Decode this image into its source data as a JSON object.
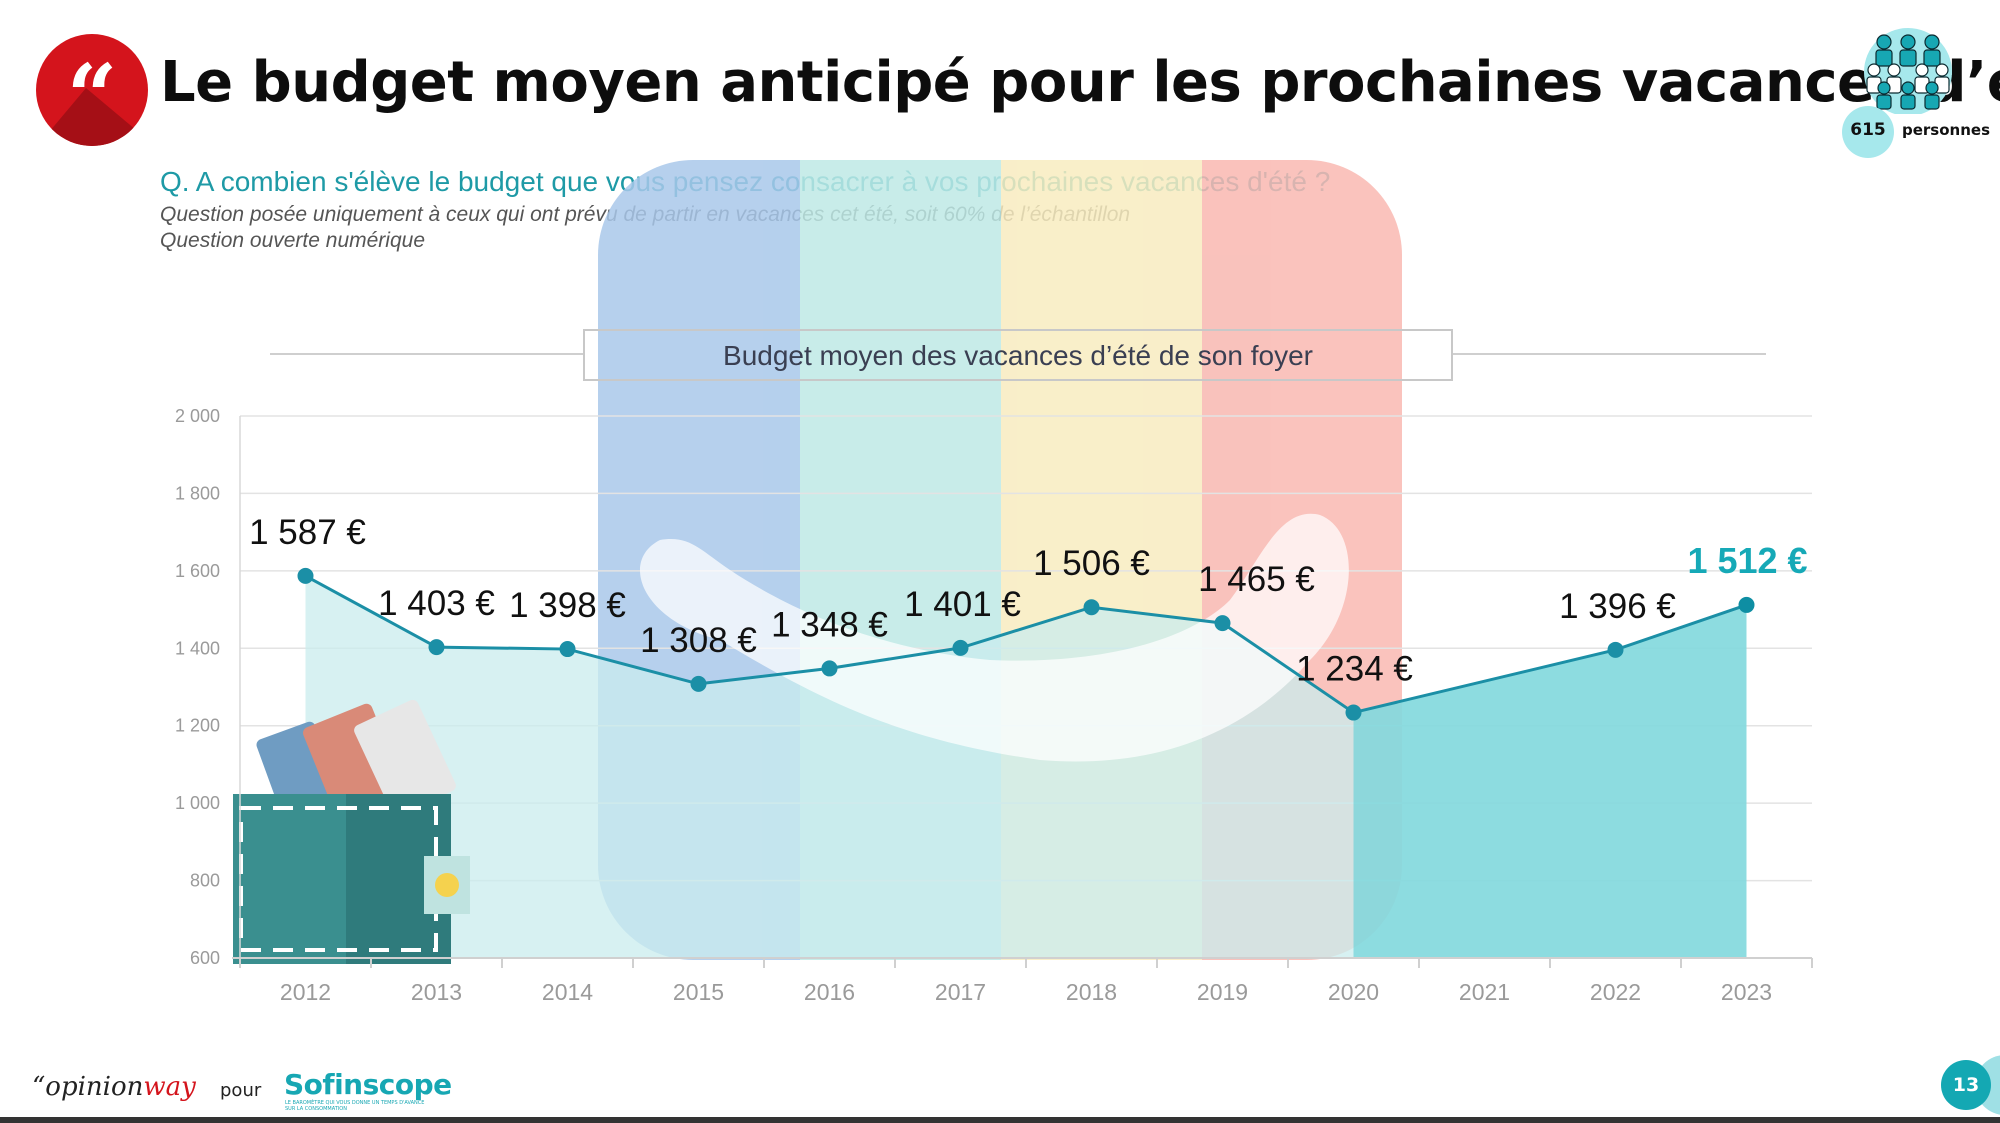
{
  "header": {
    "title": "Le budget moyen anticipé pour les prochaines vacances d’été",
    "quote_glyph": "“",
    "sample_count": "615",
    "sample_label": "personnes"
  },
  "question": {
    "text": "Q. A combien s'élève le budget que vous pensez consacrer à vos prochaines vacances d'été ?",
    "note1": "Question posée uniquement à ceux qui ont prévu de partir en vacances cet été, soit 60% de l’échantillon",
    "note2": "Question ouverte numérique"
  },
  "chart_data": {
    "type": "area",
    "title": "Budget moyen des vacances d’été de son foyer",
    "categories": [
      "2012",
      "2013",
      "2014",
      "2015",
      "2016",
      "2017",
      "2018",
      "2019",
      "2020",
      "2021",
      "2022",
      "2023"
    ],
    "points": [
      {
        "year": "2012",
        "value": 1587,
        "label": "1 587 €"
      },
      {
        "year": "2013",
        "value": 1403,
        "label": "1 403 €"
      },
      {
        "year": "2014",
        "value": 1398,
        "label": "1 398 €"
      },
      {
        "year": "2015",
        "value": 1308,
        "label": "1 308 €"
      },
      {
        "year": "2016",
        "value": 1348,
        "label": "1 348 €"
      },
      {
        "year": "2017",
        "value": 1401,
        "label": "1 401 €"
      },
      {
        "year": "2018",
        "value": 1506,
        "label": "1 506 €"
      },
      {
        "year": "2019",
        "value": 1465,
        "label": "1 465 €"
      },
      {
        "year": "2020",
        "value": 1234,
        "label": "1 234 €"
      },
      {
        "year": "2022",
        "value": 1396,
        "label": "1 396 €"
      },
      {
        "year": "2023",
        "value": 1512,
        "label": "1 512 €"
      }
    ],
    "highlight_year": "2023",
    "ylim": [
      600,
      2000
    ],
    "yticks": [
      {
        "v": 600,
        "label": "600"
      },
      {
        "v": 800,
        "label": "800"
      },
      {
        "v": 1000,
        "label": "1 000"
      },
      {
        "v": 1200,
        "label": "1 200"
      },
      {
        "v": 1400,
        "label": "1 400"
      },
      {
        "v": 1600,
        "label": "1 600"
      },
      {
        "v": 1800,
        "label": "1 800"
      },
      {
        "v": 2000,
        "label": "2 000"
      }
    ],
    "grid": true,
    "colors": {
      "line": "#1b8fa6",
      "area": "#c9ecee",
      "highlight": "#16a9b7",
      "axis": "#9a9a9a"
    }
  },
  "footer": {
    "brand_prefix": "“opinion",
    "brand_accent": "way",
    "pour": "pour",
    "logo": "Sofinscope",
    "tagline": "LE BAROMÈTRE QUI VOUS DONNE UN TEMPS D'AVANCE SUR LA CONSOMMATION",
    "page": "13"
  }
}
